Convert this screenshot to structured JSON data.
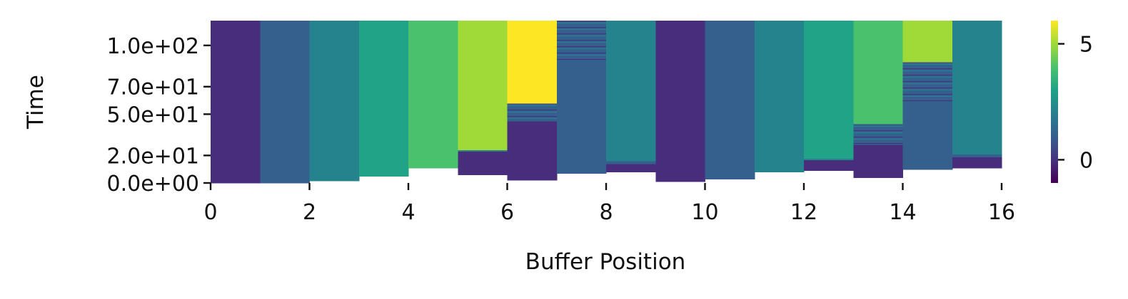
{
  "chart_data": {
    "type": "heatmap",
    "title": "",
    "xlabel": "Buffer Position",
    "ylabel": "Time",
    "xlim": [
      0,
      16
    ],
    "ylim": [
      0,
      118
    ],
    "x_ticks": [
      0,
      2,
      4,
      6,
      8,
      10,
      12,
      14,
      16
    ],
    "x_tick_labels": [
      "0",
      "2",
      "4",
      "6",
      "8",
      "10",
      "12",
      "14",
      "16"
    ],
    "y_ticks": [
      0,
      20,
      50,
      70,
      100
    ],
    "y_tick_labels": [
      "0.0e+00",
      "2.0e+01",
      "5.0e+01",
      "7.0e+01",
      "1.0e+02"
    ],
    "colormap": "viridis",
    "color_range": [
      -1,
      6
    ],
    "colorbar_ticks": [
      0,
      5
    ],
    "colorbar_tick_labels": [
      "0",
      "5"
    ],
    "colors": {
      "-1": "#472d7b",
      "0": "#472d7b",
      "1": "#355f8d",
      "2": "#25838e",
      "3": "#20a386",
      "4": "#4ac16d",
      "5": "#a0da39",
      "6": "#fde725",
      "empty": "#ffffff"
    },
    "columns": [
      {
        "position": 0,
        "segments": [
          {
            "from": 0,
            "to": 118,
            "value": 0
          }
        ]
      },
      {
        "position": 1,
        "segments": [
          {
            "from": 0,
            "to": 118,
            "value": 1
          }
        ]
      },
      {
        "position": 2,
        "segments": [
          {
            "from": 1.5,
            "to": 118,
            "value": 2
          }
        ]
      },
      {
        "position": 3,
        "segments": [
          {
            "from": 5,
            "to": 118,
            "value": 3
          }
        ]
      },
      {
        "position": 4,
        "segments": [
          {
            "from": 11,
            "to": 118,
            "value": 4
          }
        ]
      },
      {
        "position": 5,
        "segments": [
          {
            "from": 6,
            "to": 23,
            "value": 0
          },
          {
            "from": 23,
            "to": 24,
            "value": 2
          },
          {
            "from": 24,
            "to": 118,
            "value": 5
          }
        ]
      },
      {
        "position": 6,
        "segments": [
          {
            "from": 2,
            "to": 45,
            "value": 0
          },
          {
            "from": 45,
            "to": 58,
            "value": 1,
            "striped": true
          },
          {
            "from": 58,
            "to": 118,
            "value": 6
          }
        ]
      },
      {
        "position": 7,
        "segments": [
          {
            "from": 7,
            "to": 90,
            "value": 1
          },
          {
            "from": 90,
            "to": 118,
            "value": 1,
            "striped": true
          }
        ]
      },
      {
        "position": 8,
        "segments": [
          {
            "from": 8,
            "to": 14,
            "value": 0
          },
          {
            "from": 14,
            "to": 16,
            "value": 1
          },
          {
            "from": 16,
            "to": 118,
            "value": 2
          }
        ]
      },
      {
        "position": 9,
        "segments": [
          {
            "from": 1,
            "to": 118,
            "value": 0
          }
        ]
      },
      {
        "position": 10,
        "segments": [
          {
            "from": 3,
            "to": 118,
            "value": 1
          }
        ]
      },
      {
        "position": 11,
        "segments": [
          {
            "from": 8,
            "to": 118,
            "value": 2
          }
        ]
      },
      {
        "position": 12,
        "segments": [
          {
            "from": 9,
            "to": 17,
            "value": 0
          },
          {
            "from": 17,
            "to": 18,
            "value": 2
          },
          {
            "from": 18,
            "to": 118,
            "value": 3
          }
        ]
      },
      {
        "position": 13,
        "segments": [
          {
            "from": 4,
            "to": 28,
            "value": 0
          },
          {
            "from": 28,
            "to": 43,
            "value": 1,
            "striped": true
          },
          {
            "from": 43,
            "to": 118,
            "value": 4
          }
        ]
      },
      {
        "position": 14,
        "segments": [
          {
            "from": 10,
            "to": 59,
            "value": 1
          },
          {
            "from": 59,
            "to": 88,
            "value": 1,
            "striped": true
          },
          {
            "from": 88,
            "to": 118,
            "value": 5
          }
        ]
      },
      {
        "position": 15,
        "segments": [
          {
            "from": 11,
            "to": 19,
            "value": 0
          },
          {
            "from": 19,
            "to": 21,
            "value": 1
          },
          {
            "from": 21,
            "to": 118,
            "value": 2
          }
        ]
      }
    ]
  }
}
